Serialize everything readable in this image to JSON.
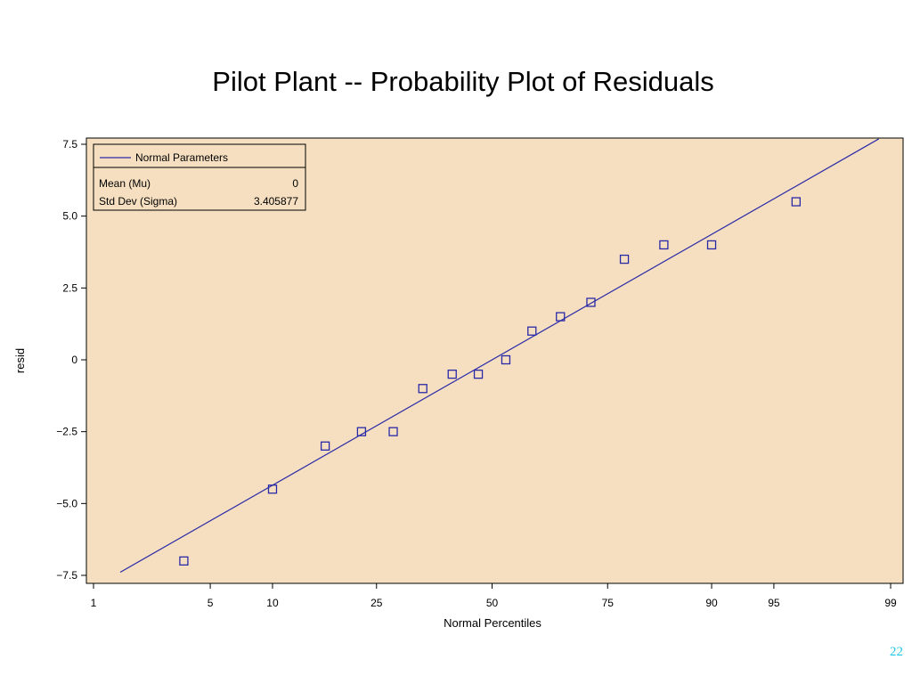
{
  "slide": {
    "title": "Pilot Plant -- Probability Plot of Residuals",
    "page_number": "22"
  },
  "colors": {
    "plot_background": "#f5dfc0",
    "series": "#2a2aa8",
    "page_number": "#1ec8e6"
  },
  "chart_data": {
    "type": "scatter",
    "title": "",
    "xlabel": "Normal Percentiles",
    "ylabel": "resid",
    "x_scale": "normal-probability",
    "x_ticks": [
      1,
      5,
      10,
      25,
      50,
      75,
      90,
      95,
      99
    ],
    "y_ticks": [
      7.5,
      5.0,
      2.5,
      0,
      -2.5,
      -5.0,
      -7.5
    ],
    "y_tick_labels": [
      "7.5",
      "5.0",
      "2.5",
      "0",
      "−2.5",
      "−5.0",
      "−7.5"
    ],
    "ylim": [
      -7.5,
      7.5
    ],
    "grid": false,
    "legend_position": "top-left",
    "legend": {
      "line_label": "Normal Parameters",
      "rows": [
        {
          "label": "Mean (Mu)",
          "value": "0"
        },
        {
          "label": "Std Dev (Sigma)",
          "value": "3.405877"
        }
      ]
    },
    "fit_line": {
      "name": "Normal Parameters",
      "mu": 0,
      "sigma": 3.405877,
      "x_range": [
        1.5,
        98.8
      ]
    },
    "points": [
      {
        "x": 3.6,
        "y": -7.0
      },
      {
        "x": 10.0,
        "y": -4.5
      },
      {
        "x": 16.5,
        "y": -3.0
      },
      {
        "x": 22.3,
        "y": -2.5
      },
      {
        "x": 28.2,
        "y": -2.5
      },
      {
        "x": 34.3,
        "y": -1.0
      },
      {
        "x": 40.8,
        "y": -0.5
      },
      {
        "x": 46.8,
        "y": -0.5
      },
      {
        "x": 53.2,
        "y": 0.0
      },
      {
        "x": 59.2,
        "y": 1.0
      },
      {
        "x": 65.5,
        "y": 1.5
      },
      {
        "x": 71.8,
        "y": 2.0
      },
      {
        "x": 78.0,
        "y": 3.5
      },
      {
        "x": 84.2,
        "y": 4.0
      },
      {
        "x": 90.0,
        "y": 4.0
      },
      {
        "x": 96.2,
        "y": 5.5
      }
    ]
  }
}
